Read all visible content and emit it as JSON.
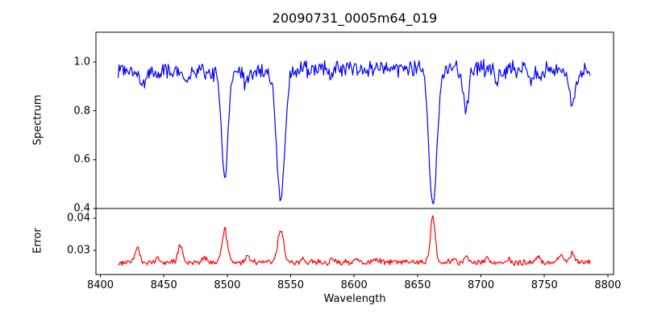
{
  "figure": {
    "background": "#ffffff",
    "text_color": "#000000",
    "spine_color": "#000000"
  },
  "chart_data": {
    "type": "line",
    "title": "20090731_0005m64_019",
    "xlabel": "Wavelength",
    "xlim": [
      8396.5,
      8804.5
    ],
    "xticks": [
      8400,
      8450,
      8500,
      8550,
      8600,
      8650,
      8700,
      8750,
      8800
    ],
    "xtick_labels": [
      "8400",
      "8450",
      "8500",
      "8550",
      "8600",
      "8650",
      "8700",
      "8750",
      "8800"
    ],
    "x_data_range": [
      8414,
      8786
    ],
    "n_points": 520,
    "noise_seed": 20090731,
    "grid": false,
    "legend": false,
    "panels": [
      {
        "name": "spectrum",
        "ylabel": "Spectrum",
        "line_color": "#0000ff",
        "ylim": [
          0.4,
          1.122
        ],
        "yticks": [
          0.4,
          0.6,
          0.8,
          1.0
        ],
        "ytick_labels": [
          "0.4",
          "0.6",
          "0.8",
          "1.0"
        ],
        "continuum": 0.966,
        "continuum_wiggle": {
          "amplitude": 0.01,
          "period": 400,
          "center": 8540
        },
        "noise_amplitude": 0.042,
        "absorption_lines": [
          {
            "center": 8434.0,
            "depth": 0.05,
            "sigma": 2.5
          },
          {
            "center": 8468.0,
            "depth": 0.04,
            "sigma": 2.0
          },
          {
            "center": 8498.0,
            "depth": 0.43,
            "sigma": 2.6
          },
          {
            "center": 8514.0,
            "depth": 0.045,
            "sigma": 2.0
          },
          {
            "center": 8542.1,
            "depth": 0.53,
            "sigma": 3.2
          },
          {
            "center": 8582.0,
            "depth": 0.035,
            "sigma": 2.0
          },
          {
            "center": 8662.1,
            "depth": 0.56,
            "sigma": 3.2
          },
          {
            "center": 8688.0,
            "depth": 0.165,
            "sigma": 2.2
          },
          {
            "center": 8713.0,
            "depth": 0.045,
            "sigma": 2.0
          },
          {
            "center": 8740.0,
            "depth": 0.035,
            "sigma": 2.0
          },
          {
            "center": 8772.0,
            "depth": 0.13,
            "sigma": 2.4
          }
        ]
      },
      {
        "name": "error",
        "ylabel": "Error",
        "line_color": "#ff0000",
        "ylim": [
          0.0225,
          0.043
        ],
        "yticks": [
          0.03,
          0.04
        ],
        "ytick_labels": [
          "0.03",
          "0.04"
        ],
        "baseline": 0.0263,
        "noise_amplitude": 0.0011,
        "emission_peaks": [
          {
            "center": 8429.0,
            "height": 0.0045,
            "sigma": 1.8
          },
          {
            "center": 8445.0,
            "height": 0.001,
            "sigma": 1.5
          },
          {
            "center": 8463.0,
            "height": 0.005,
            "sigma": 1.8
          },
          {
            "center": 8482.0,
            "height": 0.0015,
            "sigma": 1.5
          },
          {
            "center": 8498.0,
            "height": 0.01,
            "sigma": 2.2
          },
          {
            "center": 8516.0,
            "height": 0.0018,
            "sigma": 1.5
          },
          {
            "center": 8542.1,
            "height": 0.0105,
            "sigma": 2.2
          },
          {
            "center": 8560.0,
            "height": 0.001,
            "sigma": 1.5
          },
          {
            "center": 8583.0,
            "height": 0.0014,
            "sigma": 1.5
          },
          {
            "center": 8600.0,
            "height": 0.001,
            "sigma": 1.5
          },
          {
            "center": 8618.0,
            "height": 0.0008,
            "sigma": 1.5
          },
          {
            "center": 8640.0,
            "height": 0.001,
            "sigma": 1.5
          },
          {
            "center": 8662.1,
            "height": 0.0145,
            "sigma": 1.9
          },
          {
            "center": 8678.0,
            "height": 0.0012,
            "sigma": 1.5
          },
          {
            "center": 8688.0,
            "height": 0.0018,
            "sigma": 1.5
          },
          {
            "center": 8705.0,
            "height": 0.001,
            "sigma": 1.5
          },
          {
            "center": 8722.0,
            "height": 0.0008,
            "sigma": 1.5
          },
          {
            "center": 8745.0,
            "height": 0.0014,
            "sigma": 1.8
          },
          {
            "center": 8763.0,
            "height": 0.0022,
            "sigma": 2.0
          },
          {
            "center": 8772.0,
            "height": 0.0026,
            "sigma": 2.0
          }
        ]
      }
    ]
  }
}
